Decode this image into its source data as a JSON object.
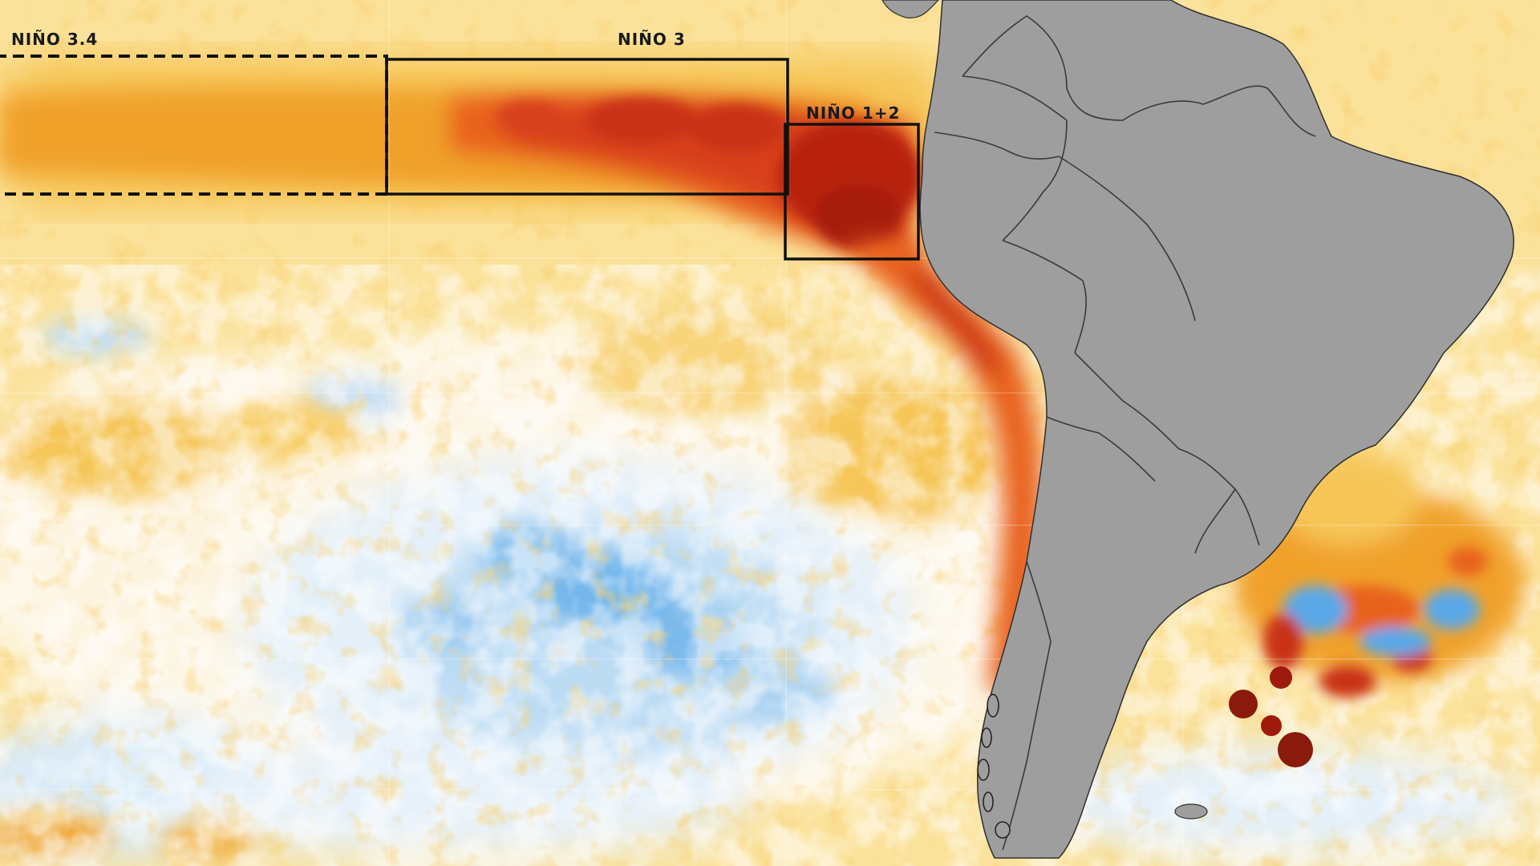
{
  "map": {
    "regions": [
      {
        "id": "nino-3-4",
        "label": "NIÑO 3.4"
      },
      {
        "id": "nino-3",
        "label": "NIÑO 3"
      },
      {
        "id": "nino-1-2",
        "label": "NIÑO 1+2"
      }
    ],
    "colors": {
      "ocean_base": "#fbe29a",
      "warm_light": "#f6c659",
      "warm": "#f0a12c",
      "hot": "#e8621c",
      "very_hot": "#c93015",
      "extreme": "#9e1a0c",
      "cool_light": "#dcecf8",
      "cool": "#a9d2f2",
      "cold": "#4fa3e8",
      "land": "#9e9e9e",
      "borders": "#3a3a3a"
    }
  }
}
